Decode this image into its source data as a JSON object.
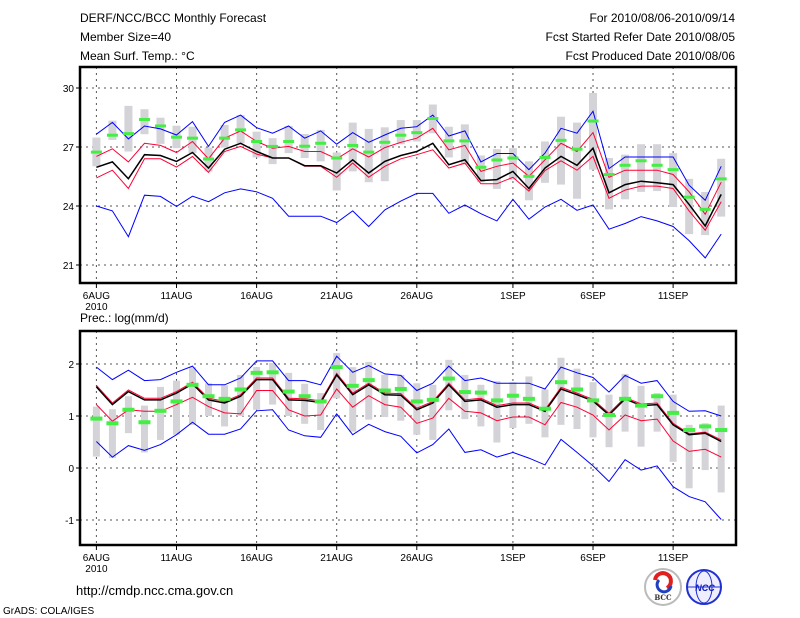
{
  "header": {
    "title": "DERF/NCC/BCC Monthly Forecast",
    "member_size": "Member Size=40",
    "variable": "Mean Surf. Temp.: °C",
    "period": "For 2010/08/06-2010/09/14",
    "started": "Fcst Started Refer Date 2010/08/05",
    "produced": "Fcst Produced Date 2010/08/06"
  },
  "footer": {
    "url": "http://cmdp.ncc.cma.gov.cn",
    "grads": "GrADS: COLA/IGES",
    "logo_bcc": "BCC",
    "logo_ncc": "NCC"
  },
  "colors": {
    "max_min": "#0000ff",
    "mean": "#000000",
    "spread": "#ff0033",
    "box": "#d3d3d8",
    "obs": "#44ee44"
  },
  "chart_data": [
    {
      "type": "line",
      "title": "Mean Surf. Temp.: °C",
      "ylabel": "°C",
      "ylim": [
        19.7,
        30.9
      ],
      "yticks": [
        30,
        27,
        24,
        21
      ],
      "xtick_labels": [
        {
          "day": 0,
          "label": "6AUG"
        },
        {
          "day": 5,
          "label": "11AUG"
        },
        {
          "day": 10,
          "label": "16AUG"
        },
        {
          "day": 15,
          "label": "21AUG"
        },
        {
          "day": 20,
          "label": "26AUG"
        },
        {
          "day": 26,
          "label": "1SEP"
        },
        {
          "day": 31,
          "label": "6SEP"
        },
        {
          "day": 36,
          "label": "11SEP"
        }
      ],
      "year_label": "2010",
      "grid": true,
      "x_days": [
        0,
        1,
        2,
        3,
        4,
        5,
        6,
        7,
        8,
        9,
        10,
        11,
        12,
        13,
        14,
        15,
        16,
        17,
        18,
        19,
        20,
        21,
        22,
        23,
        24,
        25,
        26,
        27,
        28,
        29,
        30,
        31,
        32,
        33,
        34,
        35,
        36,
        37,
        38,
        39
      ],
      "series": [
        {
          "name": "max",
          "color": "#0000ff",
          "values": [
            27.65,
            28.25,
            27.41,
            28.07,
            27.92,
            27.61,
            28.29,
            27.03,
            28.25,
            28.62,
            27.98,
            27.7,
            28.07,
            27.45,
            27.82,
            27.14,
            27.73,
            27.24,
            27.61,
            27.95,
            28.03,
            28.62,
            27.56,
            27.82,
            26.24,
            26.67,
            26.67,
            25.85,
            26.69,
            27.95,
            27.7,
            28.82,
            25.9,
            26.49,
            26.49,
            26.49,
            26.49,
            25.06,
            24.29,
            26.02
          ]
        },
        {
          "name": "min",
          "color": "#0000ff",
          "values": [
            24.0,
            23.75,
            22.44,
            24.55,
            24.49,
            23.98,
            24.5,
            24.22,
            24.67,
            24.87,
            24.72,
            24.39,
            23.48,
            23.48,
            23.48,
            23.16,
            23.75,
            22.96,
            23.8,
            24.25,
            24.64,
            24.64,
            23.63,
            24.05,
            23.61,
            23.24,
            24.34,
            23.33,
            23.95,
            24.34,
            23.78,
            24.05,
            22.82,
            23.11,
            23.46,
            23.24,
            22.96,
            22.24,
            21.36,
            22.57
          ]
        },
        {
          "name": "upper",
          "color": "#ff0033",
          "values": [
            26.52,
            26.91,
            26.24,
            27.19,
            27.08,
            26.72,
            27.28,
            26.4,
            27.45,
            27.82,
            27.28,
            26.94,
            27.03,
            26.77,
            26.77,
            26.4,
            26.91,
            26.49,
            26.97,
            27.24,
            27.45,
            27.95,
            26.86,
            27.08,
            25.76,
            26.02,
            26.18,
            25.51,
            26.35,
            27.19,
            26.77,
            27.73,
            25.46,
            25.82,
            25.82,
            25.82,
            25.6,
            24.72,
            23.58,
            25.21
          ]
        },
        {
          "name": "lower",
          "color": "#ff0033",
          "values": [
            25.43,
            25.82,
            24.89,
            26.4,
            26.4,
            25.98,
            26.52,
            25.71,
            26.77,
            27.03,
            26.64,
            26.44,
            26.44,
            26.02,
            26.02,
            25.46,
            26.18,
            25.46,
            26.02,
            26.4,
            26.61,
            26.86,
            25.93,
            26.18,
            25.13,
            25.13,
            25.46,
            24.76,
            25.8,
            26.3,
            25.82,
            26.52,
            24.39,
            24.81,
            25.01,
            25.01,
            24.89,
            23.75,
            22.77,
            24.22
          ]
        },
        {
          "name": "mean",
          "color": "#000000",
          "values": [
            25.97,
            26.24,
            25.39,
            26.61,
            26.57,
            26.27,
            26.72,
            25.93,
            26.89,
            27.19,
            26.77,
            26.44,
            26.44,
            26.05,
            26.05,
            25.68,
            26.35,
            25.68,
            26.27,
            26.57,
            26.77,
            27.19,
            26.1,
            26.35,
            25.29,
            25.34,
            25.76,
            24.89,
            25.93,
            26.52,
            26.07,
            26.94,
            24.67,
            25.09,
            25.26,
            25.18,
            25.09,
            24.08,
            22.99,
            24.59
          ]
        }
      ],
      "boxes_low": [
        26.02,
        27.36,
        26.77,
        27.65,
        27.16,
        26.94,
        26.69,
        25.76,
        26.97,
        27.19,
        26.47,
        26.13,
        26.69,
        26.44,
        26.27,
        24.79,
        25.76,
        25.21,
        25.26,
        27.14,
        27.28,
        27.7,
        26.47,
        26.1,
        25.21,
        24.87,
        25.34,
        24.29,
        25.18,
        25.09,
        24.37,
        25.85,
        23.83,
        24.34,
        24.72,
        24.76,
        23.95,
        22.57,
        22.52,
        23.46
      ],
      "boxes_high": [
        27.48,
        28.34,
        29.09,
        28.92,
        28.49,
        28.08,
        28.03,
        26.97,
        28.12,
        28.62,
        27.78,
        27.45,
        28.07,
        27.66,
        27.87,
        26.72,
        28.24,
        27.92,
        28.0,
        28.37,
        28.37,
        29.16,
        28.03,
        28.15,
        26.57,
        26.89,
        26.94,
        26.27,
        27.28,
        28.54,
        28.24,
        29.75,
        26.44,
        26.61,
        27.14,
        27.14,
        26.69,
        25.38,
        24.71,
        26.4
      ],
      "markers": [
        26.74,
        27.6,
        27.68,
        28.4,
        28.07,
        27.5,
        27.45,
        26.39,
        27.45,
        27.87,
        27.28,
        27.03,
        27.28,
        27.04,
        27.19,
        26.44,
        27.08,
        26.74,
        27.24,
        27.6,
        27.73,
        28.45,
        27.31,
        27.31,
        25.97,
        26.34,
        26.44,
        25.51,
        26.47,
        27.34,
        26.89,
        28.32,
        25.6,
        26.07,
        26.3,
        26.07,
        25.85,
        24.45,
        23.83,
        25.38
      ]
    },
    {
      "type": "line",
      "title": "Prec.: log(mm/d)",
      "ylabel": "log(mm/d)",
      "ylim": [
        -1.5,
        2.6
      ],
      "yticks": [
        2,
        1,
        0,
        -1
      ],
      "xtick_labels": [
        {
          "day": 0,
          "label": "6AUG"
        },
        {
          "day": 5,
          "label": "11AUG"
        },
        {
          "day": 10,
          "label": "16AUG"
        },
        {
          "day": 15,
          "label": "21AUG"
        },
        {
          "day": 20,
          "label": "26AUG"
        },
        {
          "day": 26,
          "label": "1SEP"
        },
        {
          "day": 31,
          "label": "6SEP"
        },
        {
          "day": 36,
          "label": "11SEP"
        }
      ],
      "year_label": "2010",
      "grid": true,
      "x_days": [
        0,
        1,
        2,
        3,
        4,
        5,
        6,
        7,
        8,
        9,
        10,
        11,
        12,
        13,
        14,
        15,
        16,
        17,
        18,
        19,
        20,
        21,
        22,
        23,
        24,
        25,
        26,
        27,
        28,
        29,
        30,
        31,
        32,
        33,
        34,
        35,
        36,
        37,
        38,
        39
      ],
      "series": [
        {
          "name": "max",
          "color": "#0000ff",
          "values": [
            1.94,
            1.7,
            1.88,
            1.68,
            1.7,
            1.84,
            1.96,
            1.6,
            1.6,
            1.73,
            2.06,
            2.06,
            1.68,
            1.68,
            1.6,
            2.15,
            1.84,
            1.97,
            1.81,
            1.78,
            1.49,
            1.63,
            1.96,
            1.68,
            1.73,
            1.63,
            1.63,
            1.63,
            1.52,
            1.94,
            1.83,
            1.74,
            1.46,
            1.78,
            1.63,
            1.68,
            1.28,
            1.09,
            1.1,
            1.0
          ]
        },
        {
          "name": "min",
          "color": "#0000ff",
          "values": [
            0.51,
            0.21,
            0.43,
            0.34,
            0.45,
            0.64,
            0.88,
            0.65,
            0.65,
            0.75,
            1.1,
            1.12,
            0.73,
            0.62,
            0.59,
            1.04,
            0.64,
            0.84,
            0.7,
            0.61,
            0.29,
            0.45,
            0.75,
            0.3,
            0.35,
            0.21,
            0.3,
            0.19,
            0.06,
            0.55,
            0.3,
            0.04,
            -0.26,
            0.16,
            -0.04,
            0.04,
            -0.36,
            -0.55,
            -0.65,
            -0.99
          ]
        },
        {
          "name": "upper",
          "color": "#ff0033",
          "values": [
            1.59,
            1.25,
            1.5,
            1.34,
            1.34,
            1.47,
            1.65,
            1.34,
            1.28,
            1.41,
            1.73,
            1.73,
            1.34,
            1.33,
            1.29,
            1.82,
            1.44,
            1.63,
            1.44,
            1.43,
            1.15,
            1.28,
            1.63,
            1.31,
            1.34,
            1.2,
            1.25,
            1.25,
            1.12,
            1.55,
            1.44,
            1.32,
            1.05,
            1.36,
            1.23,
            1.25,
            0.86,
            0.66,
            0.69,
            0.54
          ]
        },
        {
          "name": "lower",
          "color": "#ff0033",
          "values": [
            1.22,
            0.9,
            1.12,
            1.09,
            1.09,
            1.22,
            1.36,
            1.18,
            1.06,
            1.04,
            1.49,
            1.49,
            1.12,
            1.0,
            1.02,
            1.52,
            1.17,
            1.39,
            1.22,
            1.17,
            0.86,
            0.96,
            1.34,
            1.09,
            1.06,
            0.91,
            0.98,
            0.98,
            0.83,
            1.26,
            1.17,
            1.02,
            0.73,
            1.02,
            0.91,
            0.94,
            0.52,
            0.32,
            0.36,
            0.21
          ]
        },
        {
          "name": "mean",
          "color": "#000000",
          "values": [
            1.56,
            1.22,
            1.47,
            1.31,
            1.31,
            1.44,
            1.62,
            1.31,
            1.25,
            1.38,
            1.7,
            1.7,
            1.31,
            1.3,
            1.26,
            1.79,
            1.41,
            1.6,
            1.41,
            1.4,
            1.12,
            1.25,
            1.6,
            1.28,
            1.31,
            1.17,
            1.22,
            1.22,
            1.09,
            1.52,
            1.41,
            1.29,
            1.02,
            1.33,
            1.2,
            1.22,
            0.83,
            0.64,
            0.67,
            0.51
          ]
        }
      ],
      "boxes_low": [
        0.22,
        0.19,
        0.67,
        0.3,
        0.54,
        0.64,
        0.83,
        1.0,
        0.8,
        1.0,
        1.12,
        1.22,
        1.0,
        0.85,
        0.73,
        1.34,
        0.7,
        0.93,
        0.98,
        0.91,
        0.64,
        0.54,
        1.11,
        0.94,
        0.8,
        0.49,
        0.77,
        0.85,
        0.59,
        0.83,
        0.75,
        0.59,
        0.4,
        0.7,
        0.41,
        0.7,
        0.12,
        -0.39,
        -0.04,
        -0.47
      ],
      "boxes_high": [
        1.18,
        1.13,
        1.38,
        1.2,
        1.56,
        1.68,
        1.94,
        1.63,
        1.59,
        1.79,
        1.94,
        2.02,
        1.83,
        1.62,
        1.44,
        2.21,
        1.94,
        2.04,
        1.79,
        1.79,
        1.63,
        1.6,
        2.08,
        1.79,
        1.6,
        1.67,
        1.65,
        1.76,
        1.51,
        2.12,
        1.91,
        1.65,
        1.41,
        1.81,
        1.58,
        1.44,
        1.41,
        0.83,
        0.86,
        1.2
      ],
      "markers": [
        0.95,
        0.86,
        1.12,
        0.88,
        1.1,
        1.28,
        1.6,
        1.38,
        1.33,
        1.51,
        1.83,
        1.84,
        1.47,
        1.38,
        1.28,
        1.94,
        1.58,
        1.69,
        1.49,
        1.52,
        1.28,
        1.31,
        1.72,
        1.46,
        1.45,
        1.3,
        1.39,
        1.33,
        1.14,
        1.65,
        1.51,
        1.3,
        1.02,
        1.33,
        1.2,
        1.38,
        1.06,
        0.73,
        0.8,
        0.73
      ]
    }
  ]
}
